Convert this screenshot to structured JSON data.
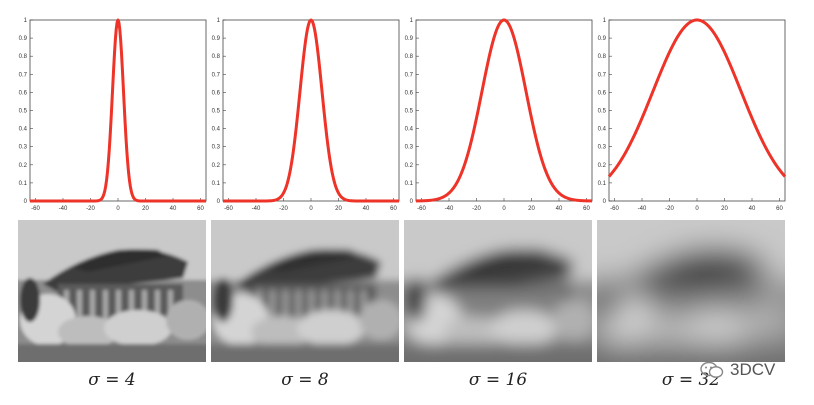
{
  "chart_data": [
    {
      "type": "line",
      "series": [
        {
          "sigma": 4,
          "color": "#ee3328"
        }
      ],
      "x": [
        -64,
        -60,
        -50,
        -40,
        -30,
        -20,
        -15,
        -10,
        -8,
        -6,
        -4,
        -2,
        0,
        2,
        4,
        6,
        8,
        10,
        15,
        20,
        30,
        40,
        50,
        60,
        64
      ],
      "y": [
        0,
        0,
        0,
        0,
        0,
        0,
        0.001,
        0.044,
        0.135,
        0.325,
        0.607,
        0.882,
        1.0,
        0.882,
        0.607,
        0.325,
        0.135,
        0.044,
        0.001,
        0,
        0,
        0,
        0,
        0,
        0
      ],
      "xlim": [
        -64,
        64
      ],
      "ylim": [
        0,
        1
      ],
      "xticks": [
        "-60",
        "-40",
        "-20",
        "0",
        "20",
        "40",
        "60"
      ],
      "yticks": [
        "0",
        "0.1",
        "0.2",
        "0.3",
        "0.4",
        "0.5",
        "0.6",
        "0.7",
        "0.8",
        "0.9",
        "1"
      ],
      "caption": "σ = 4"
    },
    {
      "type": "line",
      "series": [
        {
          "sigma": 8,
          "color": "#ee3328"
        }
      ],
      "x": [
        -64,
        -60,
        -50,
        -40,
        -30,
        -25,
        -20,
        -16,
        -12,
        -8,
        -4,
        0,
        4,
        8,
        12,
        16,
        20,
        25,
        30,
        40,
        50,
        60,
        64
      ],
      "y": [
        0,
        0,
        0,
        0,
        0.001,
        0.008,
        0.044,
        0.135,
        0.325,
        0.607,
        0.882,
        1.0,
        0.882,
        0.607,
        0.325,
        0.135,
        0.044,
        0.008,
        0.001,
        0,
        0,
        0,
        0
      ],
      "xlim": [
        -64,
        64
      ],
      "ylim": [
        0,
        1
      ],
      "xticks": [
        "-60",
        "-40",
        "-20",
        "0",
        "20",
        "40",
        "60"
      ],
      "yticks": [
        "0",
        "0.1",
        "0.2",
        "0.3",
        "0.4",
        "0.5",
        "0.6",
        "0.7",
        "0.8",
        "0.9",
        "1"
      ],
      "caption": "σ = 8"
    },
    {
      "type": "line",
      "series": [
        {
          "sigma": 16,
          "color": "#ee3328"
        }
      ],
      "x": [
        -64,
        -60,
        -50,
        -40,
        -30,
        -20,
        -10,
        0,
        10,
        20,
        30,
        40,
        50,
        60,
        64
      ],
      "y": [
        0.0,
        0.001,
        0.008,
        0.044,
        0.172,
        0.458,
        0.823,
        1.0,
        0.823,
        0.458,
        0.172,
        0.044,
        0.008,
        0.001,
        0.0
      ],
      "xlim": [
        -64,
        64
      ],
      "ylim": [
        0,
        1
      ],
      "xticks": [
        "-60",
        "-40",
        "-20",
        "0",
        "20",
        "40",
        "60"
      ],
      "yticks": [
        "0",
        "0.1",
        "0.2",
        "0.3",
        "0.4",
        "0.5",
        "0.6",
        "0.7",
        "0.8",
        "0.9",
        "1"
      ],
      "caption": "σ = 16"
    },
    {
      "type": "line",
      "series": [
        {
          "sigma": 32,
          "color": "#ee3328"
        }
      ],
      "x": [
        -64,
        -60,
        -50,
        -40,
        -30,
        -20,
        -10,
        0,
        10,
        20,
        30,
        40,
        50,
        60,
        64
      ],
      "y": [
        0.135,
        0.172,
        0.295,
        0.458,
        0.644,
        0.823,
        0.952,
        1.0,
        0.952,
        0.823,
        0.644,
        0.458,
        0.295,
        0.172,
        0.135
      ],
      "xlim": [
        -64,
        64
      ],
      "ylim": [
        0,
        1
      ],
      "xticks": [
        "-60",
        "-40",
        "-20",
        "0",
        "20",
        "40",
        "60"
      ],
      "yticks": [
        "0",
        "0.1",
        "0.2",
        "0.3",
        "0.4",
        "0.5",
        "0.6",
        "0.7",
        "0.8",
        "0.9",
        "1"
      ],
      "caption": "σ = 32"
    }
  ],
  "photos": [
    {
      "blur": 4
    },
    {
      "blur": 8
    },
    {
      "blur": 16
    },
    {
      "blur": 32
    }
  ],
  "watermark": {
    "text": "3DCV"
  }
}
